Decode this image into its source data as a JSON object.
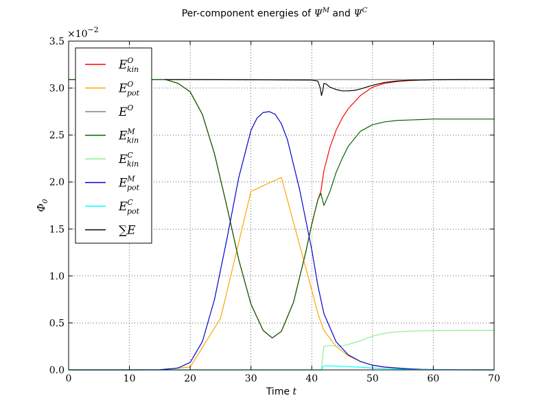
{
  "chart_data": {
    "type": "line",
    "title_prefix": "Per-component energies of ",
    "title_psi1": "Ψ",
    "title_psi1_sup": "M",
    "title_mid": " and ",
    "title_psi2": "Ψ",
    "title_psi2_sup": "C",
    "xlabel_text": "Time ",
    "xlabel_var": "t",
    "ylabel_main": "Φ",
    "ylabel_sub": "0",
    "offset_base": "×10",
    "offset_exp": "−2",
    "xlim": [
      0,
      70
    ],
    "ylim": [
      0,
      3.5
    ],
    "xticks": [
      0,
      10,
      20,
      30,
      40,
      50,
      60,
      70
    ],
    "xtick_labels": [
      "0",
      "10",
      "20",
      "30",
      "40",
      "50",
      "60",
      "70"
    ],
    "yticks": [
      0,
      0.5,
      1.0,
      1.5,
      2.0,
      2.5,
      3.0,
      3.5
    ],
    "ytick_labels": [
      "0.0",
      "0.5",
      "1.0",
      "1.5",
      "2.0",
      "2.5",
      "3.0",
      "3.5"
    ],
    "grid": true,
    "legend_position": "top-left",
    "series": [
      {
        "base": "E",
        "sup": "O",
        "sub": "kin",
        "color": "#ff0000",
        "x": [
          0,
          16,
          18,
          20,
          22,
          24,
          26,
          28,
          30,
          32,
          33.5,
          35,
          37,
          39,
          40,
          41,
          41.5,
          42,
          43,
          44,
          45,
          46,
          48,
          50,
          52,
          54,
          56,
          58,
          60,
          65,
          70
        ],
        "y": [
          3.09,
          3.09,
          3.05,
          2.96,
          2.72,
          2.3,
          1.75,
          1.17,
          0.7,
          0.42,
          0.34,
          0.41,
          0.72,
          1.25,
          1.55,
          1.81,
          1.9,
          2.12,
          2.37,
          2.55,
          2.68,
          2.78,
          2.92,
          3.01,
          3.05,
          3.07,
          3.08,
          3.085,
          3.09,
          3.09,
          3.09
        ]
      },
      {
        "base": "E",
        "sup": "O",
        "sub": "pot",
        "color": "#ffa500",
        "x": [
          0,
          10,
          15,
          20,
          25,
          30,
          35,
          40,
          41,
          42,
          44,
          46,
          48,
          50,
          52,
          54,
          56,
          58,
          60,
          65,
          70
        ],
        "y": [
          0,
          0,
          0.002,
          0.03,
          0.55,
          1.9,
          2.05,
          0.85,
          0.6,
          0.42,
          0.25,
          0.15,
          0.09,
          0.05,
          0.03,
          0.02,
          0.012,
          0.006,
          0.003,
          0.001,
          0
        ]
      },
      {
        "base": "E",
        "sup": "O",
        "sub": "",
        "color": "#808080",
        "x": [
          0,
          70
        ],
        "y": [
          3.09,
          3.09
        ]
      },
      {
        "base": "E",
        "sup": "M",
        "sub": "kin",
        "color": "#006400",
        "x": [
          0,
          16,
          18,
          20,
          22,
          24,
          26,
          28,
          30,
          32,
          33.5,
          35,
          37,
          39,
          40,
          41,
          41.5,
          42,
          43,
          44,
          45,
          46,
          48,
          50,
          52,
          54,
          56,
          58,
          60,
          65,
          70
        ],
        "y": [
          3.09,
          3.09,
          3.05,
          2.96,
          2.72,
          2.3,
          1.75,
          1.17,
          0.7,
          0.42,
          0.34,
          0.41,
          0.72,
          1.25,
          1.55,
          1.81,
          1.88,
          1.75,
          1.9,
          2.1,
          2.25,
          2.38,
          2.54,
          2.61,
          2.64,
          2.655,
          2.66,
          2.665,
          2.67,
          2.67,
          2.67
        ]
      },
      {
        "base": "E",
        "sup": "C",
        "sub": "kin",
        "color": "#90ee90",
        "x": [
          0,
          41.6,
          41.8,
          42,
          43,
          44,
          45,
          46,
          48,
          50,
          52,
          54,
          56,
          58,
          60,
          65,
          70
        ],
        "y": [
          0,
          0,
          0.15,
          0.25,
          0.26,
          0.25,
          0.255,
          0.27,
          0.31,
          0.36,
          0.39,
          0.405,
          0.412,
          0.416,
          0.418,
          0.42,
          0.42
        ]
      },
      {
        "base": "E",
        "sup": "M",
        "sub": "pot",
        "color": "#0000cd",
        "x": [
          0,
          10,
          15,
          18,
          20,
          22,
          24,
          26,
          28,
          30,
          31,
          32,
          33,
          34,
          35,
          36,
          38,
          40,
          41,
          42,
          44,
          46,
          48,
          50,
          52,
          54,
          56,
          58,
          60,
          65,
          70
        ],
        "y": [
          0,
          0,
          0.002,
          0.02,
          0.08,
          0.3,
          0.75,
          1.38,
          2.05,
          2.55,
          2.68,
          2.74,
          2.75,
          2.72,
          2.62,
          2.45,
          1.92,
          1.28,
          0.9,
          0.6,
          0.3,
          0.16,
          0.09,
          0.05,
          0.03,
          0.02,
          0.012,
          0.006,
          0.003,
          0.001,
          0
        ]
      },
      {
        "base": "E",
        "sup": "C",
        "sub": "pot",
        "color": "#00ffff",
        "x": [
          0,
          41.6,
          41.8,
          42,
          44,
          46,
          48,
          50,
          52,
          54,
          56,
          58,
          60,
          65,
          70
        ],
        "y": [
          0,
          0,
          0.03,
          0.045,
          0.04,
          0.035,
          0.028,
          0.02,
          0.014,
          0.009,
          0.005,
          0.003,
          0.002,
          0.001,
          0
        ]
      },
      {
        "base": "∑E",
        "sup": "",
        "sub": "",
        "color": "#000000",
        "x": [
          15.8,
          20,
          30,
          40,
          41,
          41.4,
          41.6,
          41.8,
          42,
          42.3,
          43,
          44,
          45,
          46,
          47,
          48,
          50,
          52,
          54,
          56,
          60,
          65,
          70
        ],
        "y": [
          3.09,
          3.09,
          3.088,
          3.085,
          3.075,
          3.0,
          2.92,
          2.97,
          3.05,
          3.045,
          3.01,
          2.985,
          2.97,
          2.97,
          2.975,
          2.99,
          3.03,
          3.06,
          3.075,
          3.083,
          3.088,
          3.09,
          3.09
        ]
      }
    ]
  }
}
